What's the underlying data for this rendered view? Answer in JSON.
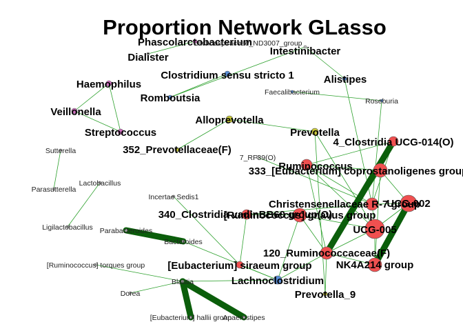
{
  "title": "Proportion Network GLasso",
  "colors": {
    "edge": "#2ca02c",
    "edge_strong": "#0b5e0b",
    "node_red": "#f05050",
    "node_pink": "#d070c0",
    "node_blue": "#5b8fd6",
    "node_olive": "#c8c83a",
    "node_gray": "#c0c0c0"
  },
  "nodes": [
    {
      "id": "n1",
      "label": "Phascolarctobacterium",
      "big": true,
      "color": "pink"
    },
    {
      "id": "n2",
      "label": "Lachnospiraceae_ND3007_group",
      "big": false,
      "color": "gray"
    },
    {
      "id": "n3",
      "label": "Dialister",
      "big": true,
      "color": "gray"
    },
    {
      "id": "n4",
      "label": "Intestinibacter",
      "big": true,
      "color": "gray"
    },
    {
      "id": "n5",
      "label": "Clostridium sensu stricto 1",
      "big": true,
      "color": "blue"
    },
    {
      "id": "n6",
      "label": "Alistipes",
      "big": true,
      "color": "blue"
    },
    {
      "id": "n7",
      "label": "Haemophilus",
      "big": true,
      "color": "pink"
    },
    {
      "id": "n8",
      "label": "Romboutsia",
      "big": true,
      "color": "blue"
    },
    {
      "id": "n9",
      "label": "Faecalibacterium",
      "big": false,
      "color": "blue"
    },
    {
      "id": "n10",
      "label": "Roseburia",
      "big": false,
      "color": "blue"
    },
    {
      "id": "n11",
      "label": "Veillonella",
      "big": true,
      "color": "pink"
    },
    {
      "id": "n12",
      "label": "Alloprevotella",
      "big": true,
      "color": "olive"
    },
    {
      "id": "n13",
      "label": "Streptococcus",
      "big": true,
      "color": "pink"
    },
    {
      "id": "n14",
      "label": "Prevotella",
      "big": true,
      "color": "olive"
    },
    {
      "id": "n15",
      "label": "4_Clostridia UCG-014(O)",
      "big": true,
      "color": "red"
    },
    {
      "id": "n16",
      "label": "352_Prevotellaceae(F)",
      "big": true,
      "color": "olive"
    },
    {
      "id": "n17",
      "label": "Sutterella",
      "big": false,
      "color": "gray"
    },
    {
      "id": "n18",
      "label": "7_RF39(O)",
      "big": false,
      "color": "gray"
    },
    {
      "id": "n19",
      "label": "Ruminococcus",
      "big": true,
      "color": "red"
    },
    {
      "id": "n20",
      "label": "333_[Eubacterium] coprostanoligenes group",
      "big": true,
      "color": "red"
    },
    {
      "id": "n21",
      "label": "Lactobacillus",
      "big": false,
      "color": "gray"
    },
    {
      "id": "n22",
      "label": "Parasutterella",
      "big": false,
      "color": "gray"
    },
    {
      "id": "n23",
      "label": "Incertae Sedis1",
      "big": false,
      "color": "gray"
    },
    {
      "id": "n24",
      "label": "Christensenellaceae R-7 group",
      "big": true,
      "color": "red"
    },
    {
      "id": "n25",
      "label": "UCG-002",
      "big": true,
      "color": "red"
    },
    {
      "id": "n26",
      "label": "340_Clostridia vadinBB60 group(O)",
      "big": true,
      "color": "red"
    },
    {
      "id": "n27",
      "label": "[Ruminococcus] gnavus group",
      "big": true,
      "color": "red"
    },
    {
      "id": "n28",
      "label": "Ligilactobacillus",
      "big": false,
      "color": "gray"
    },
    {
      "id": "n29",
      "label": "Parabacteroides",
      "big": false,
      "color": "gray"
    },
    {
      "id": "n30",
      "label": "UCG-005",
      "big": true,
      "color": "red"
    },
    {
      "id": "n31",
      "label": "Bacteroides",
      "big": false,
      "color": "gray"
    },
    {
      "id": "n32",
      "label": "120_Ruminococcaceae(F)",
      "big": true,
      "color": "red"
    },
    {
      "id": "n33",
      "label": "[Eubacterium] siraeum group",
      "big": true,
      "color": "red"
    },
    {
      "id": "n34",
      "label": "NK4A214 group",
      "big": true,
      "color": "red"
    },
    {
      "id": "n35",
      "label": "[Ruminococcus] torques group",
      "big": false,
      "color": "gray"
    },
    {
      "id": "n36",
      "label": "Blautia",
      "big": false,
      "color": "gray"
    },
    {
      "id": "n37",
      "label": "Lachnoclostridium",
      "big": true,
      "color": "blue"
    },
    {
      "id": "n38",
      "label": "Dorea",
      "big": false,
      "color": "gray"
    },
    {
      "id": "n39",
      "label": "Prevotella_9",
      "big": true,
      "color": "olive"
    },
    {
      "id": "n40",
      "label": "[Eubacterium] hallii group",
      "big": false,
      "color": "gray"
    },
    {
      "id": "n41",
      "label": "Anaerostipes",
      "big": false,
      "color": "gray"
    }
  ],
  "edges": [
    {
      "s": "n1",
      "t": "n3",
      "w": 1
    },
    {
      "s": "n4",
      "t": "n8",
      "w": 1
    },
    {
      "s": "n4",
      "t": "n6",
      "w": 1
    },
    {
      "s": "n5",
      "t": "n8",
      "w": 1
    },
    {
      "s": "n7",
      "t": "n11",
      "w": 1
    },
    {
      "s": "n7",
      "t": "n13",
      "w": 1
    },
    {
      "s": "n11",
      "t": "n13",
      "w": 1
    },
    {
      "s": "n12",
      "t": "n14",
      "w": 1
    },
    {
      "s": "n12",
      "t": "n16",
      "w": 1
    },
    {
      "s": "n9",
      "t": "n10",
      "w": 1
    },
    {
      "s": "n10",
      "t": "n24",
      "w": 1
    },
    {
      "s": "n17",
      "t": "n22",
      "w": 1
    },
    {
      "s": "n21",
      "t": "n28",
      "w": 1
    },
    {
      "s": "n29",
      "t": "n31",
      "w": 1
    },
    {
      "s": "n31",
      "t": "n37",
      "w": 1
    },
    {
      "s": "n35",
      "t": "n36",
      "w": 1
    },
    {
      "s": "n36",
      "t": "n37",
      "w": 1
    },
    {
      "s": "n38",
      "t": "n36",
      "w": 1
    },
    {
      "s": "n23",
      "t": "n33",
      "w": 1
    },
    {
      "s": "n33",
      "t": "n37",
      "w": 1
    },
    {
      "s": "n37",
      "t": "n32",
      "w": 1
    },
    {
      "s": "n15",
      "t": "n24",
      "w": 1
    },
    {
      "s": "n19",
      "t": "n20",
      "w": 1
    },
    {
      "s": "n19",
      "t": "n24",
      "w": 1
    },
    {
      "s": "n20",
      "t": "n25",
      "w": 1
    },
    {
      "s": "n24",
      "t": "n25",
      "w": 1
    },
    {
      "s": "n24",
      "t": "n30",
      "w": 1
    },
    {
      "s": "n25",
      "t": "n30",
      "w": 1
    },
    {
      "s": "n26",
      "t": "n24",
      "w": 1
    },
    {
      "s": "n26",
      "t": "n27",
      "w": 1
    },
    {
      "s": "n27",
      "t": "n32",
      "w": 1
    },
    {
      "s": "n32",
      "t": "n30",
      "w": 1
    },
    {
      "s": "n32",
      "t": "n34",
      "w": 1
    },
    {
      "s": "n34",
      "t": "n30",
      "w": 1
    },
    {
      "s": "n14",
      "t": "n39",
      "w": 1
    },
    {
      "s": "n14",
      "t": "n30",
      "w": 1
    },
    {
      "s": "n32",
      "t": "n39",
      "w": 1
    },
    {
      "s": "n19",
      "t": "n32",
      "w": 1
    },
    {
      "s": "n20",
      "t": "n32",
      "w": 1
    },
    {
      "s": "n18",
      "t": "n24",
      "w": 1
    },
    {
      "s": "n27",
      "t": "n30",
      "w": 1
    },
    {
      "s": "n33",
      "t": "n26",
      "w": 1
    },
    {
      "s": "n19",
      "t": "n30",
      "w": 1
    },
    {
      "s": "n20",
      "t": "n34",
      "w": 1
    },
    {
      "s": "n37",
      "t": "n27",
      "w": 1
    },
    {
      "s": "n15",
      "t": "n19",
      "w": 1
    },
    {
      "s": "n6",
      "t": "n24",
      "w": 1
    },
    {
      "s": "n15",
      "t": "n32",
      "w": 5
    },
    {
      "s": "n25",
      "t": "n34",
      "w": 5
    },
    {
      "s": "n29",
      "t": "n31",
      "w": 5
    },
    {
      "s": "n36",
      "t": "n40",
      "w": 5
    },
    {
      "s": "n36",
      "t": "n41",
      "w": 5
    }
  ]
}
